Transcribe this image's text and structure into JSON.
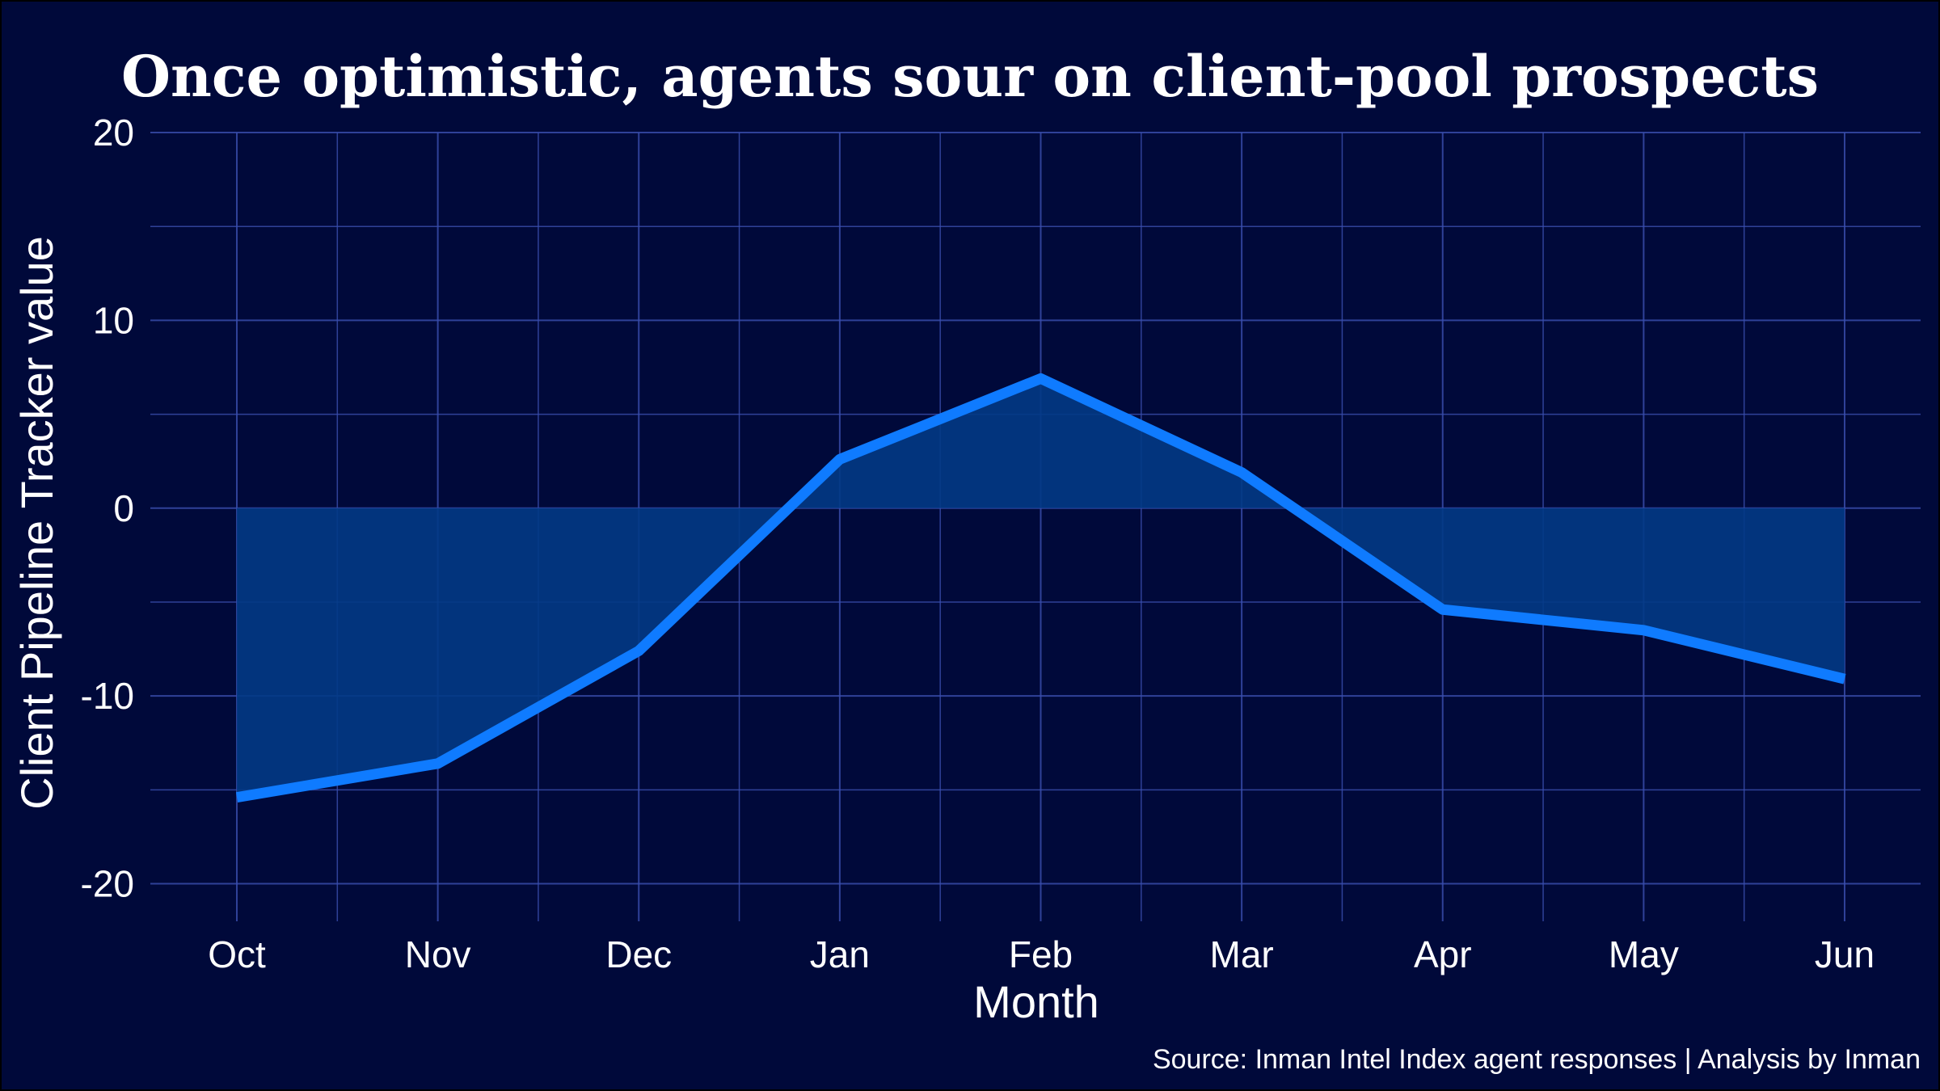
{
  "chart_data": {
    "type": "area",
    "title": "Once optimistic, agents sour on client-pool prospects",
    "xlabel": "Month",
    "ylabel": "Client Pipeline Tracker value",
    "caption": "Source: Inman Intel Index agent responses | Analysis by Inman",
    "categories": [
      "Oct",
      "Nov",
      "Dec",
      "Jan",
      "Feb",
      "Mar",
      "Apr",
      "May",
      "Jun"
    ],
    "series": [
      {
        "values": [
          -15.4,
          -13.6,
          -7.6,
          2.6,
          6.9,
          1.9,
          -5.4,
          -6.5,
          -9.1
        ]
      }
    ],
    "ylim": [
      -22,
      20
    ],
    "yticks": [
      20,
      10,
      0,
      -10,
      -20
    ],
    "ytick_labels": [
      "20",
      "10",
      "0",
      "-10",
      "-20"
    ],
    "grid": true,
    "colors": {
      "background": "#00093a",
      "line": "#0f7bff",
      "area": "#023a85",
      "grid": "#3b4fb0"
    }
  }
}
